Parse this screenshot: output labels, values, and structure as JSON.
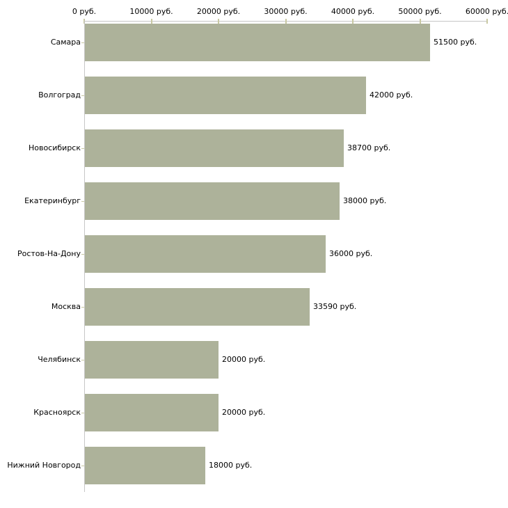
{
  "chart_data": {
    "type": "bar",
    "orientation": "horizontal",
    "title": "",
    "xlabel": "",
    "ylabel": "",
    "categories": [
      "Самара",
      "Волгоград",
      "Новосибирск",
      "Екатеринбург",
      "Ростов-На-Дону",
      "Москва",
      "Челябинск",
      "Красноярск",
      "Нижний Новгород"
    ],
    "values": [
      51500,
      42000,
      38700,
      38000,
      36000,
      33590,
      20000,
      20000,
      18000
    ],
    "value_labels": [
      "51500 руб.",
      "42000 руб.",
      "38700 руб.",
      "38000 руб.",
      "36000 руб.",
      "33590 руб.",
      "20000 руб.",
      "20000 руб.",
      "18000 руб."
    ],
    "x_axis": {
      "position": "top",
      "min": 0,
      "max": 60000,
      "tick_values": [
        0,
        10000,
        20000,
        30000,
        40000,
        50000,
        60000
      ],
      "tick_labels": [
        "0 руб.",
        "10000 руб.",
        "20000 руб.",
        "30000 руб.",
        "40000 руб.",
        "50000 руб.",
        "60000 руб."
      ]
    },
    "grid": false,
    "legend": false,
    "colors": {
      "bar_fill": "#adb29a",
      "axis_line": "#c6c6c6",
      "tick_mark": "#c9c9a3",
      "text": "#000000",
      "background": "#ffffff"
    }
  }
}
